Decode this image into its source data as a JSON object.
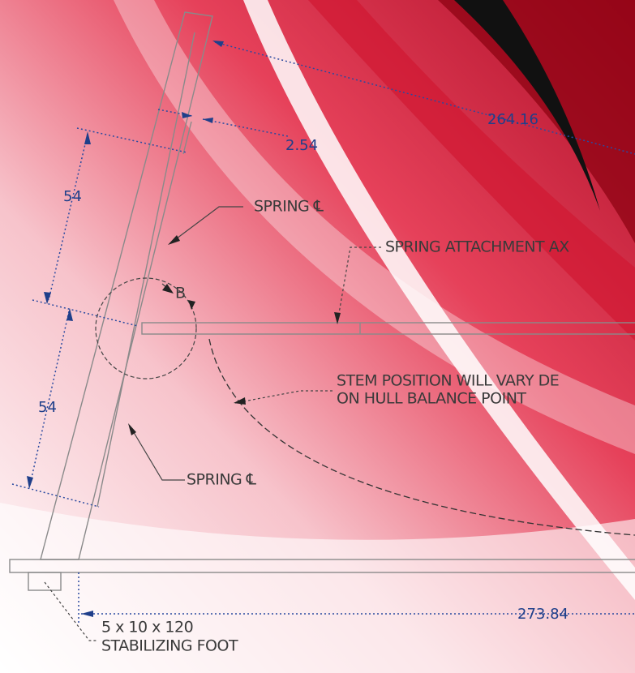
{
  "dimensions": {
    "top_length": 264.16,
    "stem_width": 2.54,
    "upper_span": 54,
    "lower_span": 54,
    "base_length": 273.84
  },
  "labels": {
    "spring_cl_upper": "SPRING ℄",
    "attachment_axis": "SPRING ATTACHMENT AX",
    "detail": "B",
    "stem_note": [
      "STEM POSITION WILL VARY DE",
      "ON HULL BALANCE POINT"
    ],
    "spring_cl_lower": "SPRING ℄",
    "foot": [
      "5 x 10 x 120",
      "STABILIZING FOOT"
    ]
  }
}
